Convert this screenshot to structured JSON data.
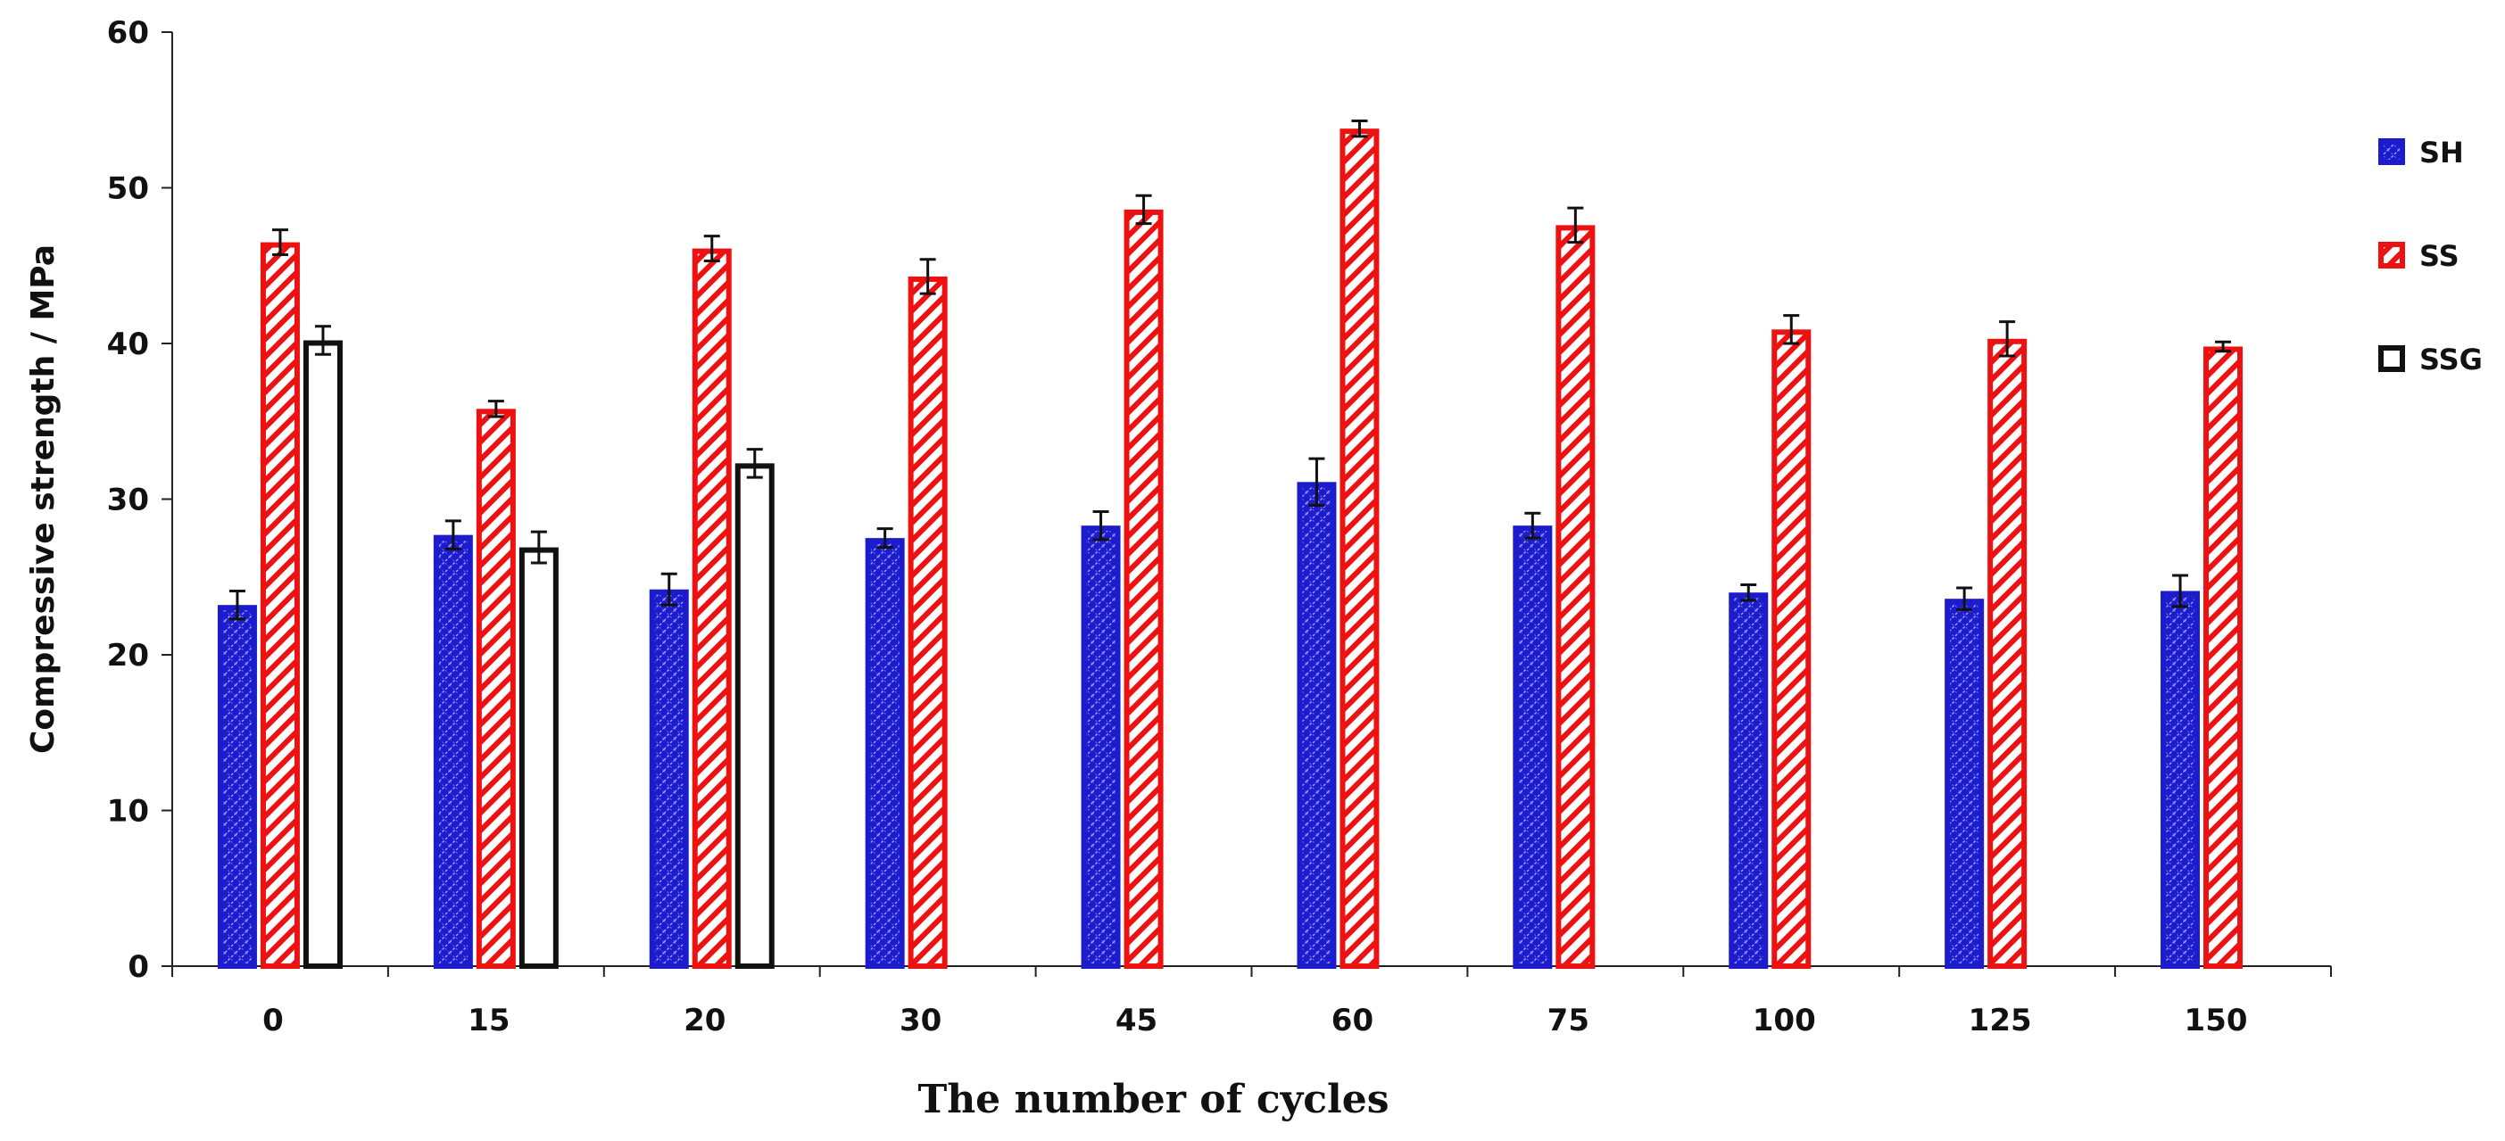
{
  "chart_data": {
    "type": "bar",
    "title": "",
    "xlabel": "The number of cycles",
    "ylabel": "Compressive strength / MPa",
    "categories": [
      "0",
      "15",
      "20",
      "30",
      "45",
      "60",
      "75",
      "100",
      "125",
      "150"
    ],
    "ylim": [
      0,
      60
    ],
    "yticks": [
      0,
      10,
      20,
      30,
      40,
      50,
      60
    ],
    "grid": false,
    "legend_position": "right",
    "series": [
      {
        "name": "SH",
        "color": "#1c1ccc",
        "pattern": "blue-crosshatch",
        "values": [
          23.2,
          27.7,
          24.2,
          27.5,
          28.3,
          31.1,
          28.3,
          24.0,
          23.6,
          24.1
        ],
        "errors": [
          0.9,
          0.9,
          1.0,
          0.6,
          0.9,
          1.5,
          0.8,
          0.5,
          0.7,
          1.0
        ]
      },
      {
        "name": "SS",
        "color": "#ee1111",
        "pattern": "red-diagonal",
        "values": [
          46.5,
          35.8,
          46.1,
          44.3,
          48.6,
          53.8,
          47.6,
          40.9,
          40.3,
          39.8
        ],
        "errors": [
          0.8,
          0.5,
          0.8,
          1.1,
          0.9,
          0.5,
          1.1,
          0.9,
          1.1,
          0.3
        ]
      },
      {
        "name": "SSG",
        "color": "#111111",
        "pattern": "outline",
        "values": [
          40.2,
          26.9,
          32.3,
          null,
          null,
          null,
          null,
          null,
          null,
          null
        ],
        "errors": [
          0.9,
          1.0,
          0.9,
          null,
          null,
          null,
          null,
          null,
          null,
          null
        ]
      }
    ]
  }
}
